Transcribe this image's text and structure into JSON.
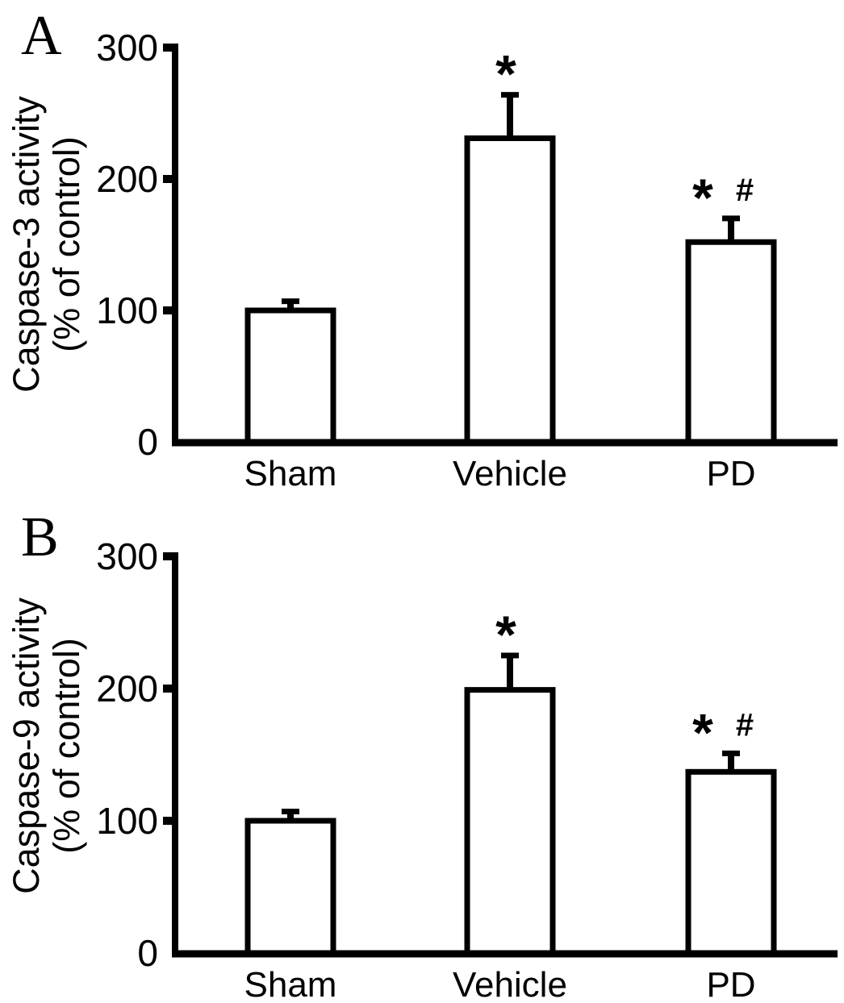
{
  "figure": {
    "background": "#ffffff",
    "ink_color": "#000000",
    "bar_fill": "#ffffff"
  },
  "chart_data": [
    {
      "type": "bar",
      "panel_label": "A",
      "ylabel_line1": "Caspase-3 activity",
      "ylabel_line2": "(% of control)",
      "xlabel": "",
      "categories": [
        "Sham",
        "Vehicle",
        "PD"
      ],
      "values": [
        100,
        231,
        152
      ],
      "errors": [
        7,
        33,
        18
      ],
      "annotations": [
        "",
        "*",
        "* #"
      ],
      "yticks": [
        0,
        100,
        200,
        300
      ],
      "ylim": [
        0,
        300
      ],
      "grid": false,
      "legend": "none"
    },
    {
      "type": "bar",
      "panel_label": "B",
      "ylabel_line1": "Caspase-9 activity",
      "ylabel_line2": "(% of control)",
      "xlabel": "",
      "categories": [
        "Sham",
        "Vehicle",
        "PD"
      ],
      "values": [
        100,
        199,
        137
      ],
      "errors": [
        7,
        26,
        14
      ],
      "annotations": [
        "",
        "*",
        "* #"
      ],
      "yticks": [
        0,
        100,
        200,
        300
      ],
      "ylim": [
        0,
        300
      ],
      "grid": false,
      "legend": "none"
    }
  ]
}
